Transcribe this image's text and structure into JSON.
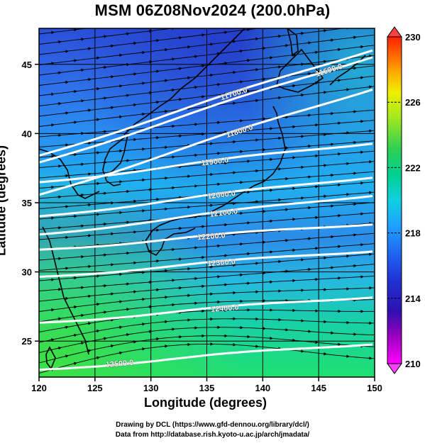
{
  "title": "MSM 06Z08Nov2024 (200.0hPa)",
  "xlabel": "Longitude (degrees)",
  "ylabel": "Latitude  (degrees)",
  "credit_line1": "Drawing by DCL (https://www.gfd-dennou.org/library/dcl/)",
  "credit_line2": "Data from http://database.rish.kyoto-u.ac.jp/arch/jmadata/",
  "map": {
    "lon_range": [
      120,
      150
    ],
    "lat_range": [
      22.4,
      47.6
    ],
    "lon_ticks": [
      120,
      125,
      130,
      135,
      140,
      145,
      150
    ],
    "lat_ticks": [
      25,
      30,
      35,
      40,
      45
    ],
    "gridlines": true,
    "shading_variable": "temperature",
    "colorbar": {
      "min": 210,
      "max": 230,
      "tick_labels": [
        "230",
        "226",
        "222",
        "218",
        "214",
        "210"
      ],
      "tick_values": [
        230,
        226,
        222,
        218,
        214,
        210
      ],
      "extend": "both",
      "colors": [
        "#ff00ff",
        "#8000c0",
        "#2000c0",
        "#1e40e0",
        "#2080ff",
        "#20c0ff",
        "#00e0d0",
        "#00d090",
        "#20d060",
        "#50e040",
        "#a0f020",
        "#f0f000",
        "#ffc000",
        "#ff8000",
        "#ff4000",
        "#ff0000"
      ]
    },
    "height_contours": [
      {
        "label": "11600.0",
        "lon": 145.9,
        "lat": 44.6
      },
      {
        "label": "11700.0",
        "lon": 137.4,
        "lat": 42.9
      },
      {
        "label": "11800.0",
        "lon": 137.9,
        "lat": 40.2
      },
      {
        "label": "11900.0",
        "lon": 135.7,
        "lat": 38.0
      },
      {
        "label": "12000.0",
        "lon": 136.3,
        "lat": 35.6
      },
      {
        "label": "12100.0",
        "lon": 136.5,
        "lat": 34.3
      },
      {
        "label": "12200.0",
        "lon": 135.4,
        "lat": 32.6
      },
      {
        "label": "12300.0",
        "lon": 136.3,
        "lat": 30.7
      },
      {
        "label": "12400.0",
        "lon": 136.6,
        "lat": 27.4
      },
      {
        "label": "12500.0",
        "lon": 127.2,
        "lat": 23.4
      }
    ],
    "streamlines": "wind vectors (westerly jet)"
  }
}
